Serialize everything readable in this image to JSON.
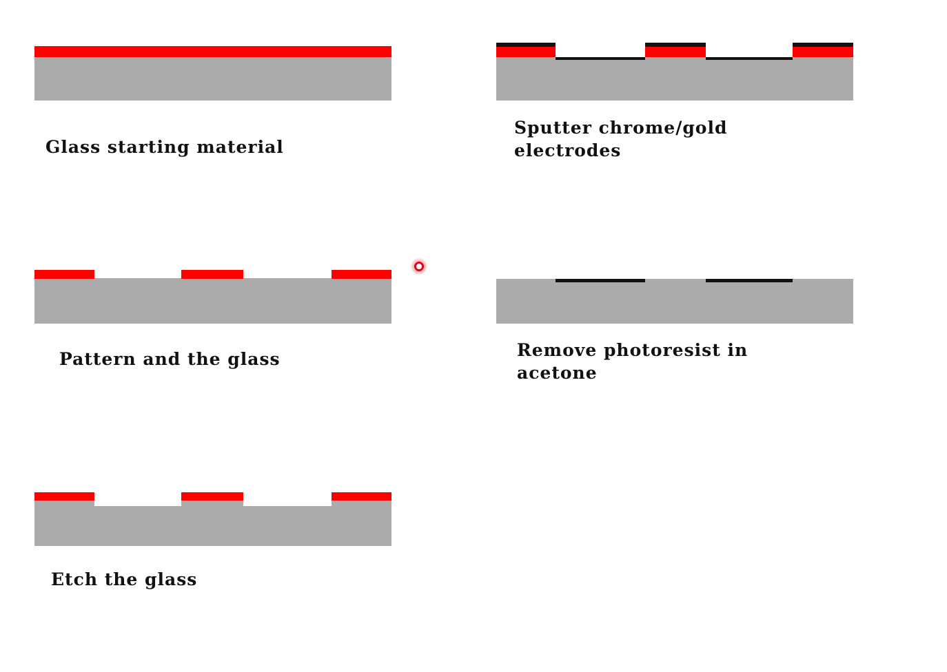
{
  "colors": {
    "glass": "#ababab",
    "photoresist": "#ff0000",
    "metal": "#111111",
    "background": "#ffffff"
  },
  "steps": [
    {
      "id": "step-1",
      "caption_lines": [
        "Glass starting material"
      ]
    },
    {
      "id": "step-2",
      "caption_lines": [
        "Pattern and the glass"
      ]
    },
    {
      "id": "step-3",
      "caption_lines": [
        "Etch the glass"
      ]
    },
    {
      "id": "step-4",
      "caption_lines": [
        "Sputter chrome/gold",
        "electrodes"
      ]
    },
    {
      "id": "step-5",
      "caption_lines": [
        "Remove photoresist in",
        "acetone"
      ]
    }
  ]
}
